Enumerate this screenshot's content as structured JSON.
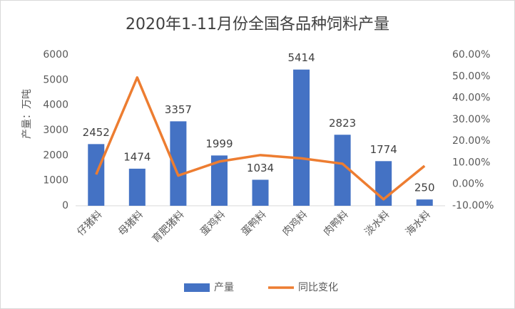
{
  "chart_data": {
    "type": "bar",
    "title": "2020年1-11月份全国各品种饲料产量",
    "ylabel": "产量：万吨",
    "categories": [
      "仔猪料",
      "母猪料",
      "育肥猪料",
      "蛋鸡料",
      "蛋鸭料",
      "肉鸡料",
      "肉鸭料",
      "淡水料",
      "海水料"
    ],
    "series": [
      {
        "name": "产量",
        "type": "bar",
        "color": "#4472c4",
        "values": [
          2452,
          1474,
          3357,
          1999,
          1034,
          5414,
          2823,
          1774,
          250
        ]
      },
      {
        "name": "同比变化",
        "type": "line",
        "axis": "y2",
        "color": "#ed7d31",
        "values": [
          4.5,
          49.5,
          4,
          10.5,
          13.5,
          12,
          9.5,
          -7,
          8.5
        ]
      }
    ],
    "ylim": [
      0,
      6000
    ],
    "yticks": [
      0,
      1000,
      2000,
      3000,
      4000,
      5000,
      6000
    ],
    "y2lim": [
      -10,
      60
    ],
    "y2ticks": [
      {
        "value": -10,
        "label": "-10.00%"
      },
      {
        "value": 0,
        "label": "0.00%"
      },
      {
        "value": 10,
        "label": "10.00%"
      },
      {
        "value": 20,
        "label": "20.00%"
      },
      {
        "value": 30,
        "label": "30.00%"
      },
      {
        "value": 40,
        "label": "40.00%"
      },
      {
        "value": 50,
        "label": "50.00%"
      },
      {
        "value": 60,
        "label": "60.00%"
      }
    ],
    "grid": false,
    "legend": "bottom"
  }
}
